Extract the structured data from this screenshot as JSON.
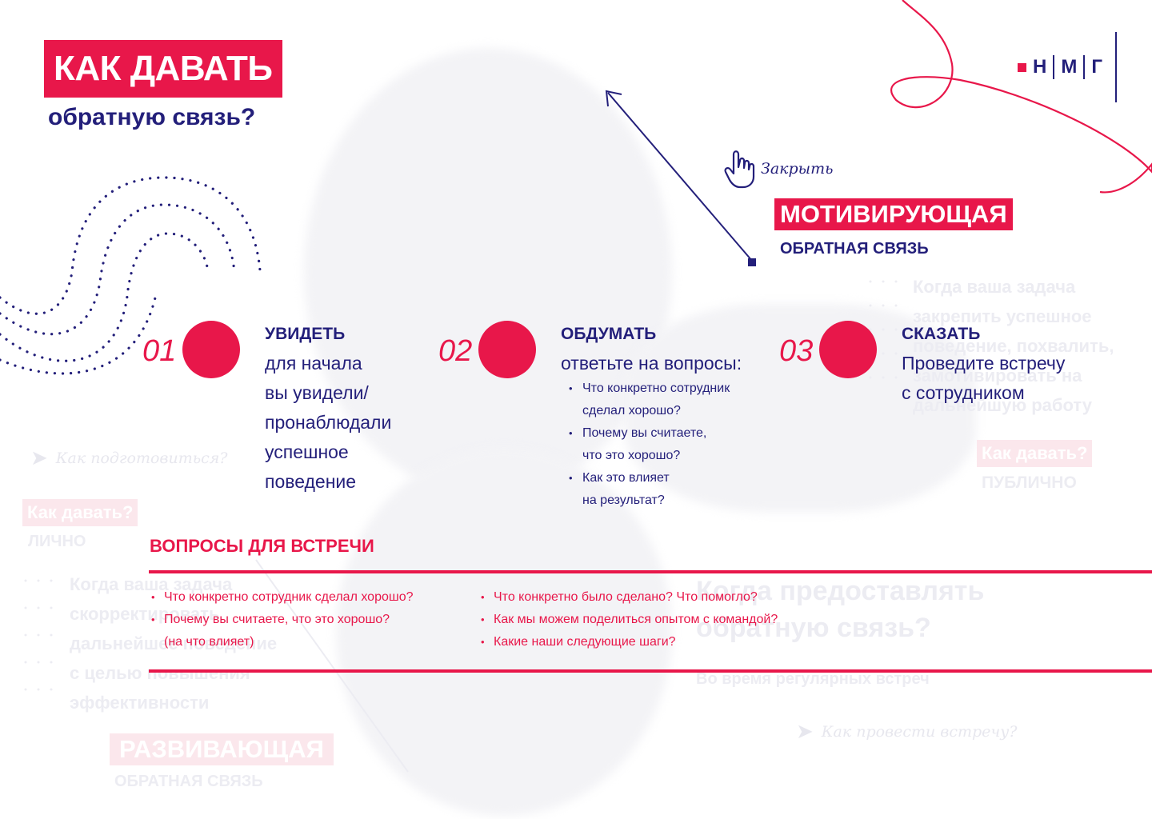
{
  "header": {
    "title": "КАК ДАВАТЬ",
    "subtitle": "обратную связь?"
  },
  "logo": {
    "letters": [
      "Н",
      "М",
      "Г"
    ]
  },
  "close_button": {
    "label": "Закрыть"
  },
  "feedback_type": {
    "title": "МОТИВИРУЮЩАЯ",
    "subtitle": "ОБРАТНАЯ СВЯЗЬ"
  },
  "steps": [
    {
      "number": "01",
      "title": "УВИДЕТЬ",
      "body_lines": [
        "для начала",
        "вы увидели/",
        "пронаблюдали",
        "успешное",
        "поведение"
      ]
    },
    {
      "number": "02",
      "title": "ОБДУМАТЬ",
      "intro": "ответьте на вопросы:",
      "items": [
        {
          "line1": "Что конкретно сотрудник",
          "line2": "сделал хорошо?"
        },
        {
          "line1": "Почему вы считаете,",
          "line2": "что это хорошо?"
        },
        {
          "line1": "Как это влияет",
          "line2": "на результат?"
        }
      ]
    },
    {
      "number": "03",
      "title": "СКАЗАТЬ",
      "body_lines": [
        "Проведите встречу",
        "с сотрудником"
      ]
    }
  ],
  "meeting": {
    "title": "ВОПРОСЫ ДЛЯ ВСТРЕЧИ",
    "col1": [
      "Что конкретно сотрудник сделал хорошо?",
      "Почему вы считаете, что это хорошо?"
    ],
    "col1_cont": "(на что влияет)",
    "col2": [
      "Что конкретно было сделано? Что помогло?",
      "Как мы можем поделиться опытом с командой?",
      "Какие наши следующие шаги?"
    ]
  },
  "background": {
    "prepare_link": "Как подготовиться?",
    "personal_tag": "Как давать?",
    "personal_label": "ЛИЧНО",
    "public_tag": "Как давать?",
    "public_label": "ПУБЛИЧНО",
    "reinforce_lines": [
      "Когда ваша задача",
      "закрепить успешное",
      "поведение, похвалить,",
      "замотивировать на",
      "дальнейшую работу"
    ],
    "correct_lines": [
      "Когда ваша задача",
      "скорректировать",
      "дальнейшее поведение",
      "с целью повышения",
      "эффективности"
    ],
    "when_title_1": "Когда предоставлять",
    "when_title_2": "обратную связь?",
    "when_sub": "Во время регулярных встреч",
    "meeting_link": "Как провести встречу?",
    "develop_title": "РАЗВИВАЮЩАЯ",
    "develop_sub": "ОБРАТНАЯ СВЯЗЬ"
  },
  "colors": {
    "navy": "#231f7a",
    "red": "#e8174a"
  }
}
